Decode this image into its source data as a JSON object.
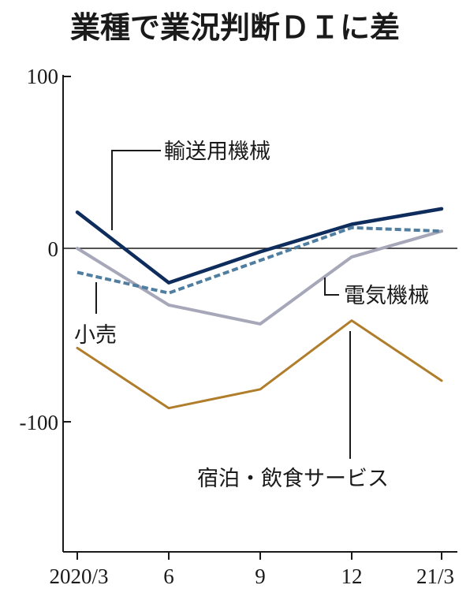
{
  "chart_data": {
    "type": "line",
    "title": "業種で業況判断ＤＩに差",
    "x_ticks": [
      "2020/3",
      "6",
      "9",
      "12",
      "21/3"
    ],
    "y_ticks": [
      "100",
      "0",
      "-100"
    ],
    "ylim": [
      -175,
      100
    ],
    "grid": false,
    "series": [
      {
        "name": "輸送用機械",
        "color": "#0f2d5c",
        "style": "solid",
        "values": [
          21,
          -20,
          -2,
          14,
          23
        ]
      },
      {
        "name": "電気機械",
        "color": "#a6a8b9",
        "style": "solid",
        "values": [
          0,
          -33,
          -44,
          -5,
          10
        ]
      },
      {
        "name": "小売",
        "color": "#4f7ea0",
        "style": "dashed",
        "values": [
          -14,
          -26,
          -7,
          12,
          10
        ]
      },
      {
        "name": "宿泊・飲食サービス",
        "color": "#b07d2b",
        "style": "solid",
        "values": [
          -58,
          -93,
          -82,
          -42,
          -77
        ]
      }
    ]
  }
}
